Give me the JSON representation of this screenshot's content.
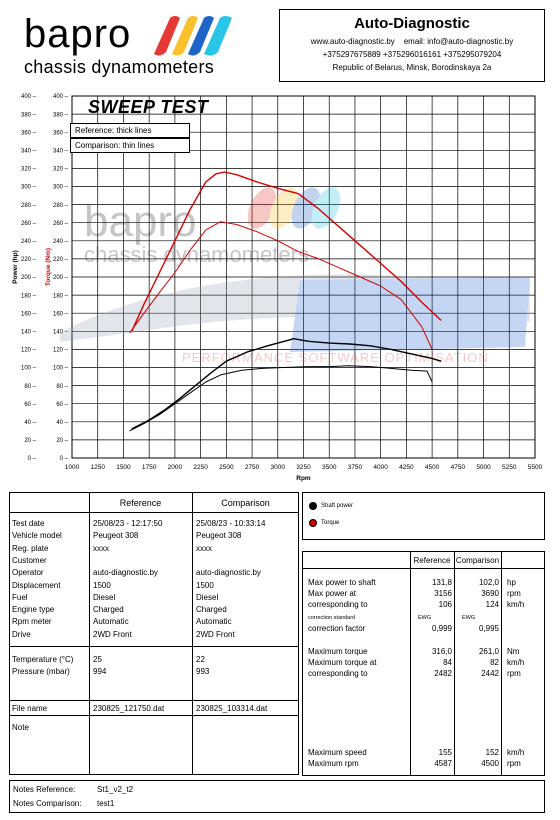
{
  "header": {
    "logo_text": "bapro",
    "logo_sub": "chassis dynamometers",
    "company": "Auto-Diagnostic",
    "website": "www.auto-diagnostic.by",
    "email": "email: info@auto-diagnostic.by",
    "phones": "+375297675889  +375296016161  +375295079204",
    "address": "Republic of Belarus, Minsk, Borodinskaya 2a"
  },
  "chart": {
    "title": "SWEEP TEST",
    "legend_reference": "Reference: thick lines",
    "legend_comparison": "Comparison: thin lines",
    "ylabel_power": "Power (hp)",
    "ylabel_torque": "Torque (Nm)",
    "xlabel": "Rpm",
    "watermark_logo": "bapro",
    "watermark_sub": "chassis dynamometers",
    "watermark_banner": "PERFORMANCE SOFTWARE OPTIMISATION"
  },
  "chart_data": {
    "type": "line",
    "title": "SWEEP TEST",
    "xlabel": "Rpm",
    "ylabel": "Power (hp) / Torque (Nm)",
    "xlim": [
      1000,
      5500
    ],
    "ylim": [
      0,
      400
    ],
    "x_ticks": [
      1000,
      1250,
      1500,
      1750,
      2000,
      2250,
      2500,
      2750,
      3000,
      3250,
      3500,
      3750,
      4000,
      4250,
      4500,
      4750,
      5000,
      5250,
      5500
    ],
    "y_ticks": [
      0,
      20,
      40,
      60,
      80,
      100,
      120,
      140,
      160,
      180,
      200,
      220,
      240,
      260,
      280,
      300,
      320,
      340,
      360,
      380,
      400
    ],
    "legend": [
      "Shaft power",
      "Torque"
    ],
    "series": [
      {
        "name": "Shaft power",
        "color": "#000000",
        "x": [
          1580,
          1750,
          1900,
          2050,
          2200,
          2350,
          2500,
          2700,
          2900,
          3100,
          3156,
          3300,
          3500,
          3700,
          3900,
          4100,
          4300,
          4500,
          4587
        ],
        "y": [
          32,
          42,
          53,
          66,
          80,
          94,
          107,
          117,
          124,
          130,
          131.8,
          129,
          127,
          126,
          124,
          120,
          115,
          110,
          107
        ]
      },
      {
        "name": "Shaft power",
        "color": "#000000",
        "x": [
          1560,
          1700,
          1850,
          2000,
          2150,
          2300,
          2450,
          2650,
          2850,
          3050,
          3300,
          3500,
          3690,
          3900,
          4100,
          4300,
          4450,
          4500
        ],
        "y": [
          30,
          38,
          48,
          60,
          72,
          84,
          92,
          97,
          99,
          100,
          101,
          101,
          102,
          101,
          99,
          97,
          96,
          84
        ]
      },
      {
        "name": "Torque",
        "color": "#d40000",
        "x": [
          1580,
          1700,
          1850,
          2000,
          2150,
          2300,
          2400,
          2482,
          2600,
          2800,
          3000,
          3200,
          3400,
          3600,
          3800,
          4000,
          4200,
          4400,
          4587
        ],
        "y": [
          140,
          170,
          205,
          240,
          275,
          305,
          314,
          316,
          313,
          305,
          298,
          292,
          275,
          255,
          235,
          215,
          195,
          172,
          152
        ]
      },
      {
        "name": "Torque",
        "color": "#d40000",
        "x": [
          1560,
          1700,
          1850,
          2000,
          2150,
          2300,
          2442,
          2600,
          2800,
          3000,
          3200,
          3400,
          3600,
          3800,
          4000,
          4200,
          4400,
          4500
        ],
        "y": [
          138,
          160,
          183,
          205,
          230,
          252,
          261,
          258,
          250,
          240,
          228,
          220,
          210,
          200,
          190,
          175,
          145,
          120
        ]
      }
    ]
  },
  "table": {
    "col_reference": "Reference",
    "col_comparison": "Comparison",
    "labels": [
      "Test date",
      "Vehicle model",
      "Reg. plate",
      "Customer",
      "Operator",
      "Displacement",
      "Fuel",
      "Engine type",
      "Rpm meter",
      "Drive"
    ],
    "reference": [
      "25/08/23 - 12:17:50",
      "Peugeot 308",
      "xxxx",
      "",
      "auto-diagnostic.by",
      "1500",
      "Diesel",
      "Charged",
      "Automatic",
      "2WD Front"
    ],
    "comparison": [
      "25/08/23 - 10:33:14",
      "Peugeot 308",
      "xxxx",
      "",
      "auto-diagnostic.by",
      "1500",
      "Diesel",
      "Charged",
      "Automatic",
      "2WD Front"
    ],
    "env_labels": [
      "Temperature (°C)",
      "Pressure (mbar)"
    ],
    "env_reference": [
      "25",
      "994"
    ],
    "env_comparison": [
      "22",
      "993"
    ],
    "file_label": "File name",
    "file_reference": "230825_121750.dat",
    "file_comparison": "230825_103314.dat",
    "note_label": "Note"
  },
  "legend_panel": {
    "shaft_power": "Shaft power",
    "torque": "Torque"
  },
  "results": {
    "col_reference": "Reference",
    "col_comparison": "Comparison",
    "rows1": [
      {
        "label": "Max power to shaft",
        "ref": "131,8",
        "cmp": "102,0",
        "unit": "hp"
      },
      {
        "label": "Max power at",
        "ref": "3156",
        "cmp": "3690",
        "unit": "rpm"
      },
      {
        "label": "corresponding to",
        "ref": "106",
        "cmp": "124",
        "unit": "km/h"
      }
    ],
    "correction_standard_label": "correction standard",
    "correction_standard_ref": "EWG",
    "correction_standard_cmp": "EWG",
    "correction_factor_label": "correction factor",
    "correction_factor_ref": "0,999",
    "correction_factor_cmp": "0,995",
    "rows2": [
      {
        "label": "Maximum torque",
        "ref": "316,0",
        "cmp": "261,0",
        "unit": "Nm"
      },
      {
        "label": "Maximum torque at",
        "ref": "84",
        "cmp": "82",
        "unit": "km/h"
      },
      {
        "label": "corresponding to",
        "ref": "2482",
        "cmp": "2442",
        "unit": "rpm"
      }
    ],
    "rows3": [
      {
        "label": "Maximum speed",
        "ref": "155",
        "cmp": "152",
        "unit": "km/h"
      },
      {
        "label": "Maximum rpm",
        "ref": "4587",
        "cmp": "4500",
        "unit": "rpm"
      }
    ]
  },
  "notes": {
    "reference_label": "Notes Reference:",
    "reference_value": "St1_v2_t2",
    "comparison_label": "Notes Comparison:",
    "comparison_value": "test1"
  },
  "colors": {
    "logo_red": "#e53935",
    "logo_yellow": "#fbc02d",
    "logo_blue": "#1e63c6",
    "logo_cyan": "#29c5e6",
    "torque_red": "#d40000",
    "watermark_blue": "#2f6fd6"
  }
}
